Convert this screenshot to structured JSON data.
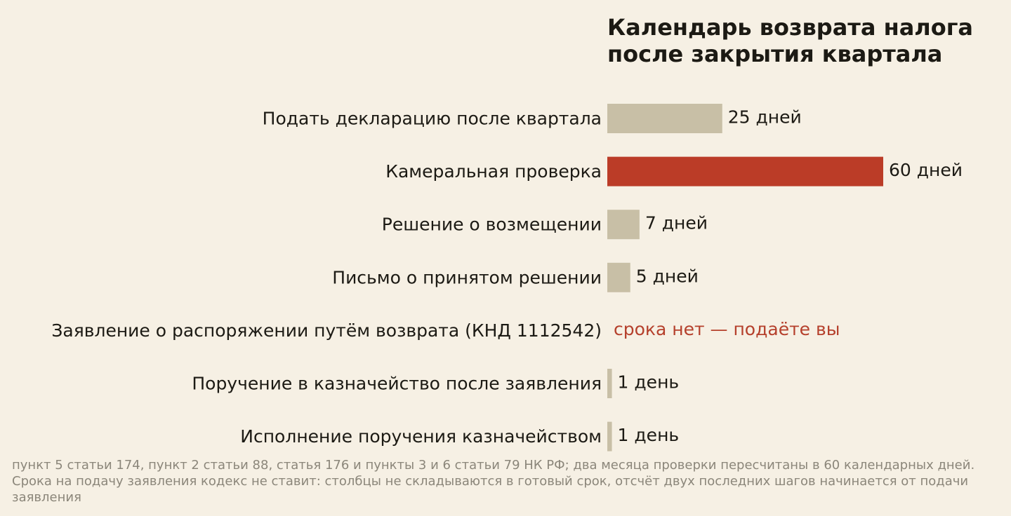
{
  "title_lines": [
    "Календарь возврата налога",
    "после закрытия квартала"
  ],
  "footnote": "пункт 5 статьи 174, пункт 2 статьи 88, статья 176 и пункты 3 и 6 статьи 79 НК РФ; два месяца проверки пересчитаны в 60 календарных дней. Срока на подачу заявления кодекс не ставит: столбцы не складываются в готовый срок, отсчёт двух последних шагов начинается от подачи заявления",
  "colors": {
    "background": "#f6f0e4",
    "bar": "#c8bfa6",
    "highlight": "#bb3c27",
    "text": "#1c1a14",
    "note_text": "#b5402c",
    "footnote_text": "#8b867a"
  },
  "chart_data": {
    "type": "bar",
    "orientation": "horizontal",
    "title": "Календарь возврата налога после закрытия квартала",
    "xlabel": "",
    "ylabel": "",
    "unit": "дней",
    "grid": false,
    "legend": "none",
    "xlim": [
      0,
      60
    ],
    "categories": [
      "Подать декларацию после квартала",
      "Камеральная проверка",
      "Решение о возмещении",
      "Письмо о принятом решении",
      "Заявление о распоряжении путём возврата (КНД 1112542)",
      "Поручение в казначейство после заявления",
      "Исполнение поручения казначейством"
    ],
    "values": [
      25,
      60,
      7,
      5,
      null,
      1,
      1
    ],
    "value_labels": [
      "25 дней",
      "60 дней",
      "7 дней",
      "5 дней",
      "срока нет — подаёте вы",
      "1 день",
      "1 день"
    ],
    "highlight_index": 1,
    "note_index": 4
  }
}
